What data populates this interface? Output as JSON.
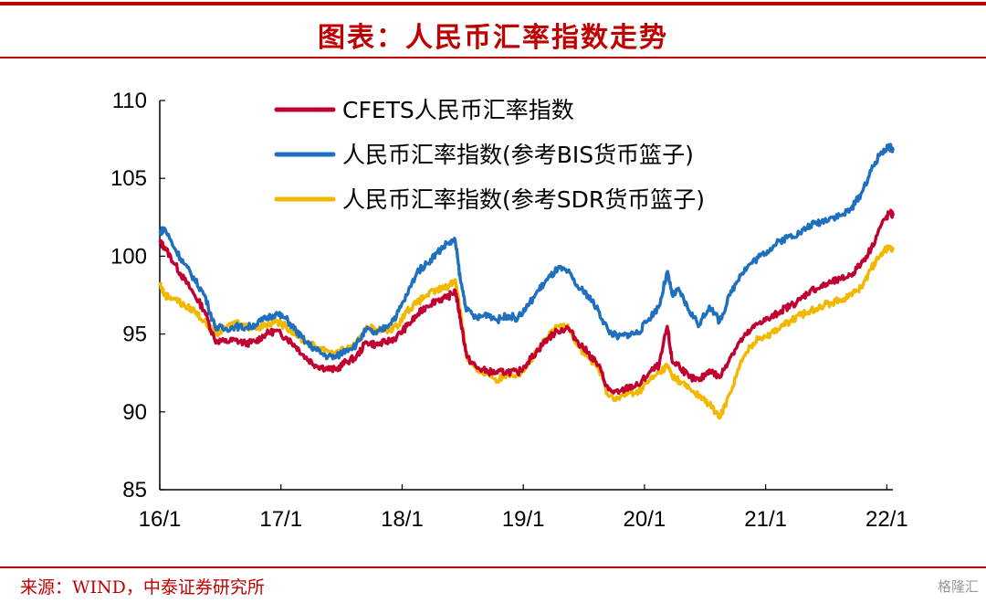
{
  "title": "图表：人民币汇率指数走势",
  "source": "来源：WIND，中泰证券研究所",
  "watermark": "格隆汇",
  "chart_data": {
    "type": "line",
    "title": "图表：人民币汇率指数走势",
    "xlabel": "",
    "ylabel": "",
    "x_ticks": [
      "16/1",
      "17/1",
      "18/1",
      "19/1",
      "20/1",
      "21/1",
      "22/1"
    ],
    "y_ticks": [
      85,
      90,
      95,
      100,
      105,
      110
    ],
    "ylim": [
      85,
      110
    ],
    "grid": false,
    "legend_position": "top-center",
    "series": [
      {
        "name": "CFETS人民币汇率指数",
        "color": "#c00030",
        "points": [
          [
            "2016-01-01",
            100.9
          ],
          [
            "2016-01-15",
            100.6
          ],
          [
            "2016-02-15",
            99.5
          ],
          [
            "2016-03-15",
            98.5
          ],
          [
            "2016-04-15",
            97.5
          ],
          [
            "2016-05-15",
            96.5
          ],
          [
            "2016-06-15",
            94.6
          ],
          [
            "2016-07-15",
            94.5
          ],
          [
            "2016-08-15",
            94.6
          ],
          [
            "2016-09-15",
            94.4
          ],
          [
            "2016-10-15",
            94.5
          ],
          [
            "2016-11-15",
            95.0
          ],
          [
            "2016-12-15",
            95.2
          ],
          [
            "2017-01-15",
            94.8
          ],
          [
            "2017-02-15",
            94.2
          ],
          [
            "2017-03-15",
            93.5
          ],
          [
            "2017-04-15",
            93.0
          ],
          [
            "2017-05-15",
            92.8
          ],
          [
            "2017-06-15",
            92.7
          ],
          [
            "2017-07-15",
            93.2
          ],
          [
            "2017-08-15",
            93.5
          ],
          [
            "2017-09-15",
            94.5
          ],
          [
            "2017-10-15",
            94.3
          ],
          [
            "2017-11-15",
            94.5
          ],
          [
            "2017-12-15",
            94.8
          ],
          [
            "2018-01-15",
            95.5
          ],
          [
            "2018-02-15",
            96.2
          ],
          [
            "2018-03-15",
            96.8
          ],
          [
            "2018-04-15",
            97.2
          ],
          [
            "2018-05-15",
            97.3
          ],
          [
            "2018-06-10",
            97.8
          ],
          [
            "2018-06-25",
            96.0
          ],
          [
            "2018-07-15",
            93.5
          ],
          [
            "2018-08-15",
            92.8
          ],
          [
            "2018-09-15",
            92.6
          ],
          [
            "2018-10-15",
            92.5
          ],
          [
            "2018-11-15",
            92.6
          ],
          [
            "2018-12-15",
            92.5
          ],
          [
            "2019-01-15",
            93.2
          ],
          [
            "2019-02-15",
            94.0
          ],
          [
            "2019-03-15",
            94.7
          ],
          [
            "2019-04-15",
            95.2
          ],
          [
            "2019-05-15",
            95.4
          ],
          [
            "2019-06-15",
            94.5
          ],
          [
            "2019-07-15",
            93.8
          ],
          [
            "2019-08-15",
            93.0
          ],
          [
            "2019-09-15",
            91.4
          ],
          [
            "2019-10-15",
            91.2
          ],
          [
            "2019-11-15",
            91.6
          ],
          [
            "2019-12-15",
            91.7
          ],
          [
            "2020-01-15",
            92.5
          ],
          [
            "2020-02-15",
            93.0
          ],
          [
            "2020-03-10",
            95.5
          ],
          [
            "2020-03-25",
            93.2
          ],
          [
            "2020-04-15",
            93.0
          ],
          [
            "2020-05-15",
            92.2
          ],
          [
            "2020-06-15",
            92.0
          ],
          [
            "2020-07-15",
            92.7
          ],
          [
            "2020-08-15",
            92.2
          ],
          [
            "2020-09-15",
            93.5
          ],
          [
            "2020-10-15",
            94.5
          ],
          [
            "2020-11-15",
            95.2
          ],
          [
            "2020-12-15",
            95.8
          ],
          [
            "2021-01-15",
            96.0
          ],
          [
            "2021-02-15",
            96.5
          ],
          [
            "2021-03-15",
            96.8
          ],
          [
            "2021-04-15",
            97.2
          ],
          [
            "2021-05-15",
            97.8
          ],
          [
            "2021-06-15",
            98.0
          ],
          [
            "2021-07-15",
            98.3
          ],
          [
            "2021-08-15",
            98.5
          ],
          [
            "2021-09-15",
            98.8
          ],
          [
            "2021-10-15",
            99.5
          ],
          [
            "2021-11-15",
            100.5
          ],
          [
            "2021-12-15",
            102.0
          ],
          [
            "2022-01-10",
            102.8
          ],
          [
            "2022-01-20",
            102.6
          ]
        ]
      },
      {
        "name": "人民币汇率指数(参考BIS货币篮子)",
        "color": "#1f6fbf",
        "points": [
          [
            "2016-01-01",
            101.5
          ],
          [
            "2016-01-15",
            101.8
          ],
          [
            "2016-02-15",
            100.5
          ],
          [
            "2016-03-15",
            99.5
          ],
          [
            "2016-04-15",
            98.5
          ],
          [
            "2016-05-15",
            97.5
          ],
          [
            "2016-06-15",
            95.5
          ],
          [
            "2016-07-15",
            95.3
          ],
          [
            "2016-08-15",
            95.5
          ],
          [
            "2016-09-15",
            95.4
          ],
          [
            "2016-10-15",
            95.6
          ],
          [
            "2016-11-15",
            96.0
          ],
          [
            "2016-12-15",
            96.3
          ],
          [
            "2017-01-15",
            96.0
          ],
          [
            "2017-02-15",
            95.2
          ],
          [
            "2017-03-15",
            94.5
          ],
          [
            "2017-04-15",
            94.0
          ],
          [
            "2017-05-15",
            93.6
          ],
          [
            "2017-06-15",
            93.5
          ],
          [
            "2017-07-15",
            94.0
          ],
          [
            "2017-08-15",
            94.3
          ],
          [
            "2017-09-15",
            95.3
          ],
          [
            "2017-10-15",
            95.0
          ],
          [
            "2017-11-15",
            95.5
          ],
          [
            "2017-12-15",
            96.2
          ],
          [
            "2018-01-15",
            97.5
          ],
          [
            "2018-02-15",
            99.0
          ],
          [
            "2018-03-15",
            99.5
          ],
          [
            "2018-04-15",
            100.2
          ],
          [
            "2018-05-15",
            100.8
          ],
          [
            "2018-06-10",
            101.0
          ],
          [
            "2018-06-25",
            98.5
          ],
          [
            "2018-07-15",
            96.5
          ],
          [
            "2018-08-15",
            96.0
          ],
          [
            "2018-09-15",
            96.3
          ],
          [
            "2018-10-15",
            95.9
          ],
          [
            "2018-11-15",
            96.2
          ],
          [
            "2018-12-15",
            96.0
          ],
          [
            "2019-01-15",
            96.8
          ],
          [
            "2019-02-15",
            97.8
          ],
          [
            "2019-03-15",
            98.5
          ],
          [
            "2019-04-15",
            99.2
          ],
          [
            "2019-05-15",
            99.0
          ],
          [
            "2019-06-15",
            98.0
          ],
          [
            "2019-07-15",
            97.5
          ],
          [
            "2019-08-15",
            96.5
          ],
          [
            "2019-09-15",
            95.2
          ],
          [
            "2019-10-15",
            94.8
          ],
          [
            "2019-11-15",
            95.0
          ],
          [
            "2019-12-15",
            95.1
          ],
          [
            "2020-01-15",
            96.0
          ],
          [
            "2020-02-15",
            96.8
          ],
          [
            "2020-03-10",
            99.0
          ],
          [
            "2020-03-25",
            97.5
          ],
          [
            "2020-04-15",
            97.8
          ],
          [
            "2020-05-15",
            96.5
          ],
          [
            "2020-06-15",
            95.6
          ],
          [
            "2020-07-15",
            96.8
          ],
          [
            "2020-08-15",
            95.8
          ],
          [
            "2020-09-15",
            97.5
          ],
          [
            "2020-10-15",
            98.8
          ],
          [
            "2020-11-15",
            99.5
          ],
          [
            "2020-12-15",
            100.0
          ],
          [
            "2021-01-15",
            100.5
          ],
          [
            "2021-02-15",
            101.0
          ],
          [
            "2021-03-15",
            101.3
          ],
          [
            "2021-04-15",
            101.5
          ],
          [
            "2021-05-15",
            102.0
          ],
          [
            "2021-06-15",
            102.2
          ],
          [
            "2021-07-15",
            102.5
          ],
          [
            "2021-08-15",
            102.6
          ],
          [
            "2021-09-15",
            103.0
          ],
          [
            "2021-10-15",
            104.0
          ],
          [
            "2021-11-15",
            105.5
          ],
          [
            "2021-12-15",
            106.7
          ],
          [
            "2022-01-10",
            107.0
          ],
          [
            "2022-01-20",
            106.8
          ]
        ]
      },
      {
        "name": "人民币汇率指数(参考SDR货币篮子)",
        "color": "#f2b800",
        "points": [
          [
            "2016-01-01",
            98.3
          ],
          [
            "2016-01-15",
            97.5
          ],
          [
            "2016-02-15",
            97.3
          ],
          [
            "2016-03-15",
            96.8
          ],
          [
            "2016-04-15",
            96.5
          ],
          [
            "2016-05-15",
            95.8
          ],
          [
            "2016-06-15",
            95.0
          ],
          [
            "2016-07-15",
            95.3
          ],
          [
            "2016-08-15",
            95.8
          ],
          [
            "2016-09-15",
            95.5
          ],
          [
            "2016-10-15",
            95.4
          ],
          [
            "2016-11-15",
            95.6
          ],
          [
            "2016-12-15",
            95.8
          ],
          [
            "2017-01-15",
            95.5
          ],
          [
            "2017-02-15",
            95.0
          ],
          [
            "2017-03-15",
            94.5
          ],
          [
            "2017-04-15",
            94.2
          ],
          [
            "2017-05-15",
            94.0
          ],
          [
            "2017-06-15",
            93.8
          ],
          [
            "2017-07-15",
            94.0
          ],
          [
            "2017-08-15",
            94.3
          ],
          [
            "2017-09-15",
            95.5
          ],
          [
            "2017-10-15",
            95.3
          ],
          [
            "2017-11-15",
            95.2
          ],
          [
            "2017-12-15",
            95.5
          ],
          [
            "2018-01-15",
            96.5
          ],
          [
            "2018-02-15",
            97.0
          ],
          [
            "2018-03-15",
            97.5
          ],
          [
            "2018-04-15",
            97.8
          ],
          [
            "2018-05-15",
            98.0
          ],
          [
            "2018-06-10",
            98.5
          ],
          [
            "2018-06-25",
            96.5
          ],
          [
            "2018-07-15",
            93.5
          ],
          [
            "2018-08-15",
            92.6
          ],
          [
            "2018-09-15",
            92.5
          ],
          [
            "2018-10-15",
            92.0
          ],
          [
            "2018-11-15",
            92.5
          ],
          [
            "2018-12-15",
            92.4
          ],
          [
            "2019-01-15",
            93.0
          ],
          [
            "2019-02-15",
            94.0
          ],
          [
            "2019-03-15",
            94.8
          ],
          [
            "2019-04-15",
            95.5
          ],
          [
            "2019-05-15",
            95.6
          ],
          [
            "2019-06-15",
            94.2
          ],
          [
            "2019-07-15",
            93.5
          ],
          [
            "2019-08-15",
            92.8
          ],
          [
            "2019-09-15",
            91.0
          ],
          [
            "2019-10-15",
            90.9
          ],
          [
            "2019-11-15",
            91.2
          ],
          [
            "2019-12-15",
            91.3
          ],
          [
            "2020-01-15",
            92.0
          ],
          [
            "2020-02-15",
            92.5
          ],
          [
            "2020-03-10",
            93.0
          ],
          [
            "2020-03-25",
            92.3
          ],
          [
            "2020-04-15",
            92.0
          ],
          [
            "2020-05-15",
            91.5
          ],
          [
            "2020-06-15",
            91.0
          ],
          [
            "2020-07-15",
            90.5
          ],
          [
            "2020-08-15",
            89.6
          ],
          [
            "2020-09-15",
            91.2
          ],
          [
            "2020-10-15",
            93.0
          ],
          [
            "2020-11-15",
            94.2
          ],
          [
            "2020-12-15",
            94.8
          ],
          [
            "2021-01-15",
            95.0
          ],
          [
            "2021-02-15",
            95.5
          ],
          [
            "2021-03-15",
            95.8
          ],
          [
            "2021-04-15",
            96.2
          ],
          [
            "2021-05-15",
            96.5
          ],
          [
            "2021-06-15",
            96.8
          ],
          [
            "2021-07-15",
            97.0
          ],
          [
            "2021-08-15",
            97.2
          ],
          [
            "2021-09-15",
            97.5
          ],
          [
            "2021-10-15",
            98.0
          ],
          [
            "2021-11-15",
            99.2
          ],
          [
            "2021-12-15",
            100.2
          ],
          [
            "2022-01-10",
            100.6
          ],
          [
            "2022-01-20",
            100.4
          ]
        ]
      }
    ]
  }
}
